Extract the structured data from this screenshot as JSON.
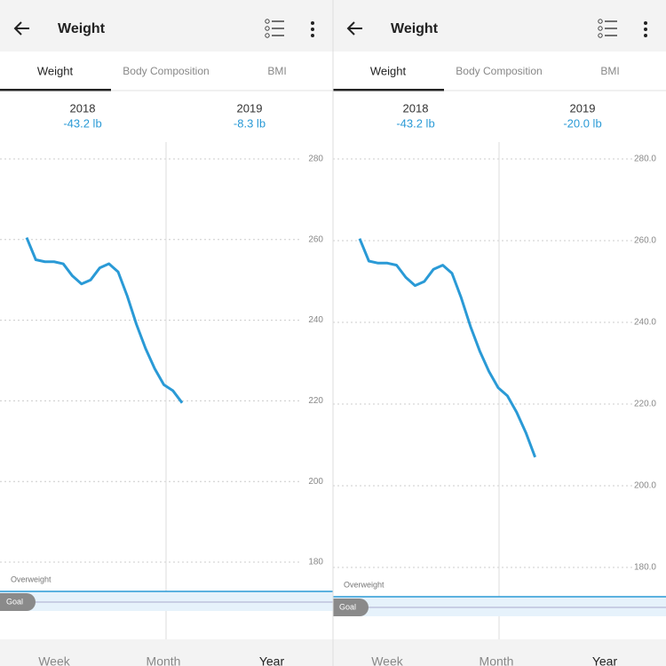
{
  "panels": [
    {
      "title": "Weight",
      "tabs": [
        "Weight",
        "Body Composition",
        "BMI"
      ],
      "years": [
        {
          "label": "2018",
          "change": "-43.2 lb"
        },
        {
          "label": "2019",
          "change": "-8.3 lb"
        }
      ],
      "chart": {
        "type": "line",
        "ylim": [
          180,
          280
        ],
        "yticks": [
          280,
          260,
          240,
          220,
          200,
          180
        ],
        "series": [
          {
            "color": "#2a9ad6",
            "values": [
              260.5,
              255,
              254.5,
              254.5,
              254,
              251,
              249,
              250,
              253,
              254,
              252,
              246,
              239,
              233,
              228,
              224,
              222.5,
              219.5
            ]
          }
        ],
        "band_label": "Overweight",
        "goal_label": "Goal"
      },
      "periods": [
        "Week",
        "Month",
        "Year"
      ]
    },
    {
      "title": "Weight",
      "tabs": [
        "Weight",
        "Body Composition",
        "BMI"
      ],
      "years": [
        {
          "label": "2018",
          "change": "-43.2 lb"
        },
        {
          "label": "2019",
          "change": "-20.0 lb"
        }
      ],
      "chart": {
        "type": "line",
        "ylim": [
          180,
          280
        ],
        "yticks": [
          {
            "value": 280,
            "label": "280.0"
          },
          {
            "value": 260,
            "label": "260.0"
          },
          {
            "value": 240,
            "label": "240.0"
          },
          {
            "value": 220,
            "label": "220.0"
          },
          {
            "value": 200,
            "label": "200.0"
          },
          {
            "value": 180,
            "label": "180.0"
          }
        ],
        "series": [
          {
            "color": "#2a9ad6",
            "values": [
              260.5,
              255,
              254.5,
              254.5,
              254,
              251,
              249,
              250,
              253,
              254,
              252,
              246,
              239,
              233,
              228,
              224,
              222,
              218,
              213,
              207
            ]
          }
        ],
        "band_label": "Overweight",
        "goal_label": "Goal"
      },
      "periods": [
        "Week",
        "Month",
        "Year"
      ]
    }
  ]
}
